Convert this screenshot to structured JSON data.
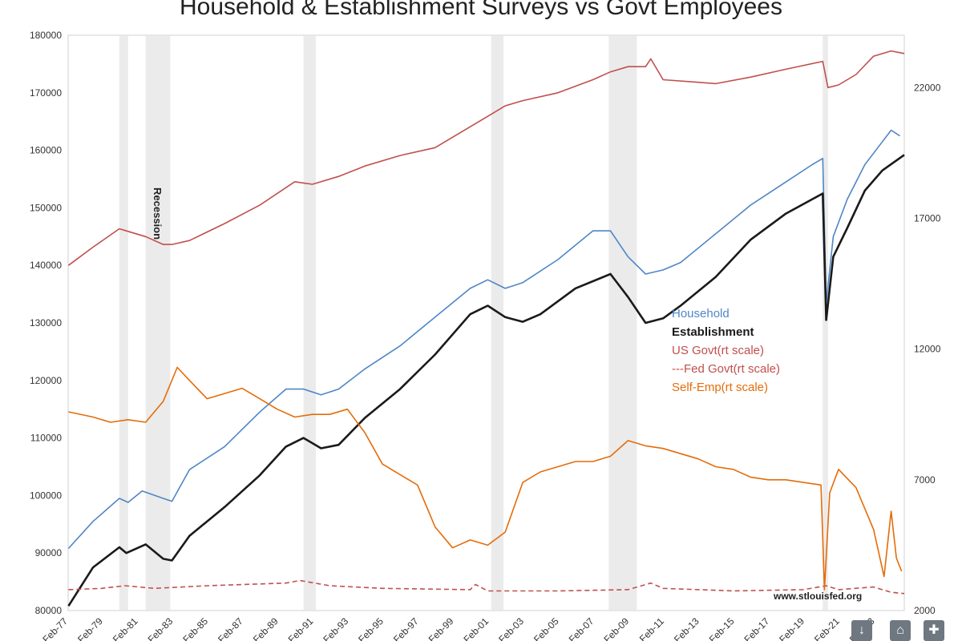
{
  "chart_data": {
    "type": "line",
    "title": "Household & Establishment Surveys vs Govt Employees",
    "left_axis": {
      "min": 80000,
      "max": 180000,
      "ticks": [
        "180000",
        "170000",
        "160000",
        "150000",
        "140000",
        "130000",
        "120000",
        "110000",
        "100000",
        "90000",
        "80000"
      ]
    },
    "right_axis": {
      "min": 2000,
      "max": 24000,
      "ticks": [
        "22000",
        "17000",
        "12000",
        "7000",
        "2000"
      ]
    },
    "x_axis": {
      "start": 1977.08,
      "end": 2024.75,
      "labels": [
        "Feb-77",
        "Feb-79",
        "Feb-81",
        "Feb-83",
        "Feb-85",
        "Feb-87",
        "Feb-89",
        "Feb-91",
        "Feb-93",
        "Feb-95",
        "Feb-97",
        "Feb-99",
        "Feb-01",
        "Feb-03",
        "Feb-05",
        "Feb-07",
        "Feb-09",
        "Feb-11",
        "Feb-13",
        "Feb-15",
        "Feb-17",
        "Feb-19",
        "Feb-21",
        "Feb-23"
      ]
    },
    "recession_label": "Recession",
    "recessions": [
      [
        1980.0,
        1980.5
      ],
      [
        1981.5,
        1982.9
      ],
      [
        1990.5,
        1991.2
      ],
      [
        2001.2,
        2001.9
      ],
      [
        2007.9,
        2009.5
      ],
      [
        2020.1,
        2020.4
      ]
    ],
    "legend": [
      {
        "label": "Household",
        "color": "#4f86c6"
      },
      {
        "label": "Establishment",
        "color": "#1a1a1a"
      },
      {
        "label": "US Govt(rt scale)",
        "color": "#c0504d"
      },
      {
        "label": "---Fed Govt(rt scale)",
        "color": "#c0504d"
      },
      {
        "label": "Self-Emp(rt scale)",
        "color": "#e46c0a"
      }
    ],
    "series": [
      {
        "name": "Household",
        "axis": "left",
        "color": "#4f86c6",
        "width": 1.6,
        "points": [
          [
            1977.1,
            90800
          ],
          [
            1978.5,
            95500
          ],
          [
            1980.0,
            99500
          ],
          [
            1980.5,
            98800
          ],
          [
            1981.3,
            100800
          ],
          [
            1982.5,
            99500
          ],
          [
            1983.0,
            99000
          ],
          [
            1984.0,
            104500
          ],
          [
            1986.0,
            108500
          ],
          [
            1988.0,
            114500
          ],
          [
            1989.5,
            118500
          ],
          [
            1990.5,
            118500
          ],
          [
            1991.5,
            117500
          ],
          [
            1992.5,
            118500
          ],
          [
            1994.0,
            122000
          ],
          [
            1996.0,
            126000
          ],
          [
            1998.0,
            131000
          ],
          [
            2000.0,
            136000
          ],
          [
            2001.0,
            137500
          ],
          [
            2002.0,
            136000
          ],
          [
            2003.0,
            137000
          ],
          [
            2005.0,
            141000
          ],
          [
            2007.0,
            146000
          ],
          [
            2008.0,
            146000
          ],
          [
            2009.0,
            141500
          ],
          [
            2010.0,
            138500
          ],
          [
            2011.0,
            139200
          ],
          [
            2012.0,
            140500
          ],
          [
            2014.0,
            145500
          ],
          [
            2016.0,
            150500
          ],
          [
            2018.0,
            154500
          ],
          [
            2019.5,
            157500
          ],
          [
            2020.1,
            158600
          ],
          [
            2020.3,
            133500
          ],
          [
            2020.7,
            145000
          ],
          [
            2021.5,
            151500
          ],
          [
            2022.5,
            157500
          ],
          [
            2023.5,
            161500
          ],
          [
            2024.0,
            163500
          ],
          [
            2024.5,
            162500
          ]
        ]
      },
      {
        "name": "Establishment",
        "axis": "left",
        "color": "#1a1a1a",
        "width": 2.6,
        "points": [
          [
            1977.1,
            80800
          ],
          [
            1978.5,
            87500
          ],
          [
            1980.0,
            91000
          ],
          [
            1980.4,
            90000
          ],
          [
            1981.5,
            91500
          ],
          [
            1982.5,
            89000
          ],
          [
            1983.0,
            88700
          ],
          [
            1984.0,
            93000
          ],
          [
            1986.0,
            98000
          ],
          [
            1988.0,
            103500
          ],
          [
            1989.5,
            108500
          ],
          [
            1990.5,
            110000
          ],
          [
            1991.5,
            108200
          ],
          [
            1992.5,
            108800
          ],
          [
            1994.0,
            113500
          ],
          [
            1996.0,
            118500
          ],
          [
            1998.0,
            124500
          ],
          [
            2000.0,
            131500
          ],
          [
            2001.0,
            133000
          ],
          [
            2002.0,
            131000
          ],
          [
            2003.0,
            130200
          ],
          [
            2004.0,
            131500
          ],
          [
            2006.0,
            136000
          ],
          [
            2008.0,
            138500
          ],
          [
            2009.0,
            134500
          ],
          [
            2010.0,
            130000
          ],
          [
            2011.0,
            130800
          ],
          [
            2012.0,
            133000
          ],
          [
            2014.0,
            138000
          ],
          [
            2016.0,
            144500
          ],
          [
            2018.0,
            149000
          ],
          [
            2020.1,
            152500
          ],
          [
            2020.3,
            130500
          ],
          [
            2020.7,
            141500
          ],
          [
            2021.5,
            146500
          ],
          [
            2022.5,
            153000
          ],
          [
            2023.5,
            156500
          ],
          [
            2024.75,
            159200
          ]
        ]
      },
      {
        "name": "US Govt(rt scale)",
        "axis": "right",
        "color": "#c0504d",
        "width": 1.6,
        "points": [
          [
            1977.1,
            15200
          ],
          [
            1978.5,
            15900
          ],
          [
            1980.0,
            16600
          ],
          [
            1980.5,
            16500
          ],
          [
            1981.5,
            16300
          ],
          [
            1982.5,
            16000
          ],
          [
            1983.0,
            16000
          ],
          [
            1984.0,
            16150
          ],
          [
            1986.0,
            16800
          ],
          [
            1988.0,
            17500
          ],
          [
            1990.0,
            18400
          ],
          [
            1991.0,
            18300
          ],
          [
            1992.5,
            18600
          ],
          [
            1994.0,
            19000
          ],
          [
            1996.0,
            19400
          ],
          [
            1998.0,
            19700
          ],
          [
            2000.0,
            20500
          ],
          [
            2001.0,
            20900
          ],
          [
            2002.0,
            21300
          ],
          [
            2003.0,
            21500
          ],
          [
            2005.0,
            21800
          ],
          [
            2007.0,
            22300
          ],
          [
            2008.0,
            22600
          ],
          [
            2009.0,
            22800
          ],
          [
            2010.0,
            22800
          ],
          [
            2010.3,
            23100
          ],
          [
            2011.0,
            22300
          ],
          [
            2013.0,
            22200
          ],
          [
            2014.0,
            22150
          ],
          [
            2016.0,
            22400
          ],
          [
            2018.0,
            22700
          ],
          [
            2020.1,
            23000
          ],
          [
            2020.4,
            22000
          ],
          [
            2021.0,
            22100
          ],
          [
            2022.0,
            22500
          ],
          [
            2023.0,
            23200
          ],
          [
            2024.0,
            23400
          ],
          [
            2024.75,
            23300
          ]
        ]
      },
      {
        "name": "---Fed Govt(rt scale)",
        "axis": "right",
        "color": "#c0504d",
        "width": 1.6,
        "dash": "6,4",
        "points": [
          [
            1977.1,
            2800
          ],
          [
            1979.0,
            2850
          ],
          [
            1980.3,
            2950
          ],
          [
            1982.0,
            2850
          ],
          [
            1985.0,
            2950
          ],
          [
            1989.5,
            3050
          ],
          [
            1990.3,
            3150
          ],
          [
            1992.0,
            2950
          ],
          [
            1995.0,
            2850
          ],
          [
            2000.0,
            2800
          ],
          [
            2000.3,
            3000
          ],
          [
            2001.0,
            2750
          ],
          [
            2005.0,
            2750
          ],
          [
            2009.0,
            2800
          ],
          [
            2010.3,
            3050
          ],
          [
            2011.0,
            2850
          ],
          [
            2015.0,
            2750
          ],
          [
            2019.0,
            2800
          ],
          [
            2020.3,
            2950
          ],
          [
            2021.0,
            2800
          ],
          [
            2023.0,
            2900
          ],
          [
            2024.0,
            2700
          ],
          [
            2024.75,
            2650
          ]
        ]
      },
      {
        "name": "Self-Emp(rt scale)",
        "axis": "right",
        "color": "#e46c0a",
        "width": 1.6,
        "points": [
          [
            1977.1,
            9600
          ],
          [
            1978.5,
            9400
          ],
          [
            1979.5,
            9200
          ],
          [
            1980.5,
            9300
          ],
          [
            1981.5,
            9200
          ],
          [
            1982.5,
            10000
          ],
          [
            1983.3,
            11300
          ],
          [
            1984.0,
            10800
          ],
          [
            1985.0,
            10100
          ],
          [
            1986.0,
            10300
          ],
          [
            1987.0,
            10500
          ],
          [
            1988.0,
            10100
          ],
          [
            1989.0,
            9700
          ],
          [
            1990.0,
            9400
          ],
          [
            1991.0,
            9500
          ],
          [
            1992.0,
            9500
          ],
          [
            1993.0,
            9700
          ],
          [
            1994.0,
            8800
          ],
          [
            1995.0,
            7600
          ],
          [
            1996.0,
            7200
          ],
          [
            1997.0,
            6800
          ],
          [
            1998.0,
            5200
          ],
          [
            1999.0,
            4400
          ],
          [
            2000.0,
            4700
          ],
          [
            2001.0,
            4500
          ],
          [
            2002.0,
            5000
          ],
          [
            2003.0,
            6900
          ],
          [
            2004.0,
            7300
          ],
          [
            2005.0,
            7500
          ],
          [
            2006.0,
            7700
          ],
          [
            2007.0,
            7700
          ],
          [
            2008.0,
            7900
          ],
          [
            2009.0,
            8500
          ],
          [
            2010.0,
            8300
          ],
          [
            2011.0,
            8200
          ],
          [
            2012.0,
            8000
          ],
          [
            2013.0,
            7800
          ],
          [
            2014.0,
            7500
          ],
          [
            2015.0,
            7400
          ],
          [
            2016.0,
            7100
          ],
          [
            2017.0,
            7000
          ],
          [
            2018.0,
            7000
          ],
          [
            2019.0,
            6900
          ],
          [
            2020.0,
            6800
          ],
          [
            2020.2,
            2800
          ],
          [
            2020.5,
            6500
          ],
          [
            2021.0,
            7400
          ],
          [
            2022.0,
            6700
          ],
          [
            2023.0,
            5100
          ],
          [
            2023.6,
            3300
          ],
          [
            2024.0,
            5800
          ],
          [
            2024.3,
            4000
          ],
          [
            2024.6,
            3500
          ]
        ]
      }
    ],
    "source": "www.stlouisfed.org"
  },
  "toolbar": {
    "download_icon": "↓",
    "share_icon": "⌂",
    "settings_icon": "✚"
  }
}
